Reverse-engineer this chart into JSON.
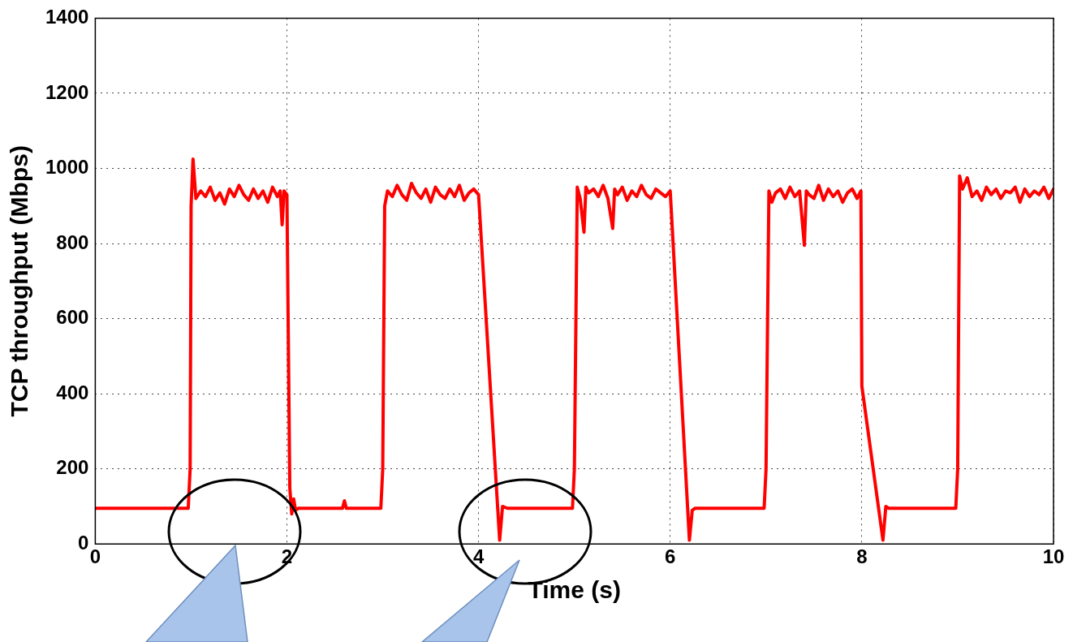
{
  "chart_data": {
    "type": "line",
    "xlabel": "Time (s)",
    "ylabel": "TCP throughput (Mbps)",
    "xlim": [
      0,
      10
    ],
    "xticks": [
      0,
      2,
      4,
      6,
      8,
      10
    ],
    "ylim": [
      0,
      1400
    ],
    "yticks": [
      0,
      200,
      400,
      600,
      800,
      1000,
      1200,
      1400
    ],
    "grid": true,
    "marker": "none",
    "line_style": "solid",
    "series": [
      {
        "color": "#ff0000",
        "x": [
          0,
          0.5,
          0.97,
          0.99,
          1.0,
          1.02,
          1.05,
          1.1,
          1.15,
          1.2,
          1.25,
          1.3,
          1.35,
          1.4,
          1.45,
          1.5,
          1.55,
          1.6,
          1.65,
          1.7,
          1.75,
          1.8,
          1.85,
          1.9,
          1.93,
          1.95,
          1.97,
          2.0,
          2.03,
          2.05,
          2.07,
          2.09,
          2.12,
          2.2,
          2.58,
          2.6,
          2.62,
          2.8,
          2.98,
          3.0,
          3.02,
          3.05,
          3.1,
          3.15,
          3.2,
          3.25,
          3.3,
          3.35,
          3.4,
          3.45,
          3.5,
          3.55,
          3.6,
          3.65,
          3.7,
          3.75,
          3.8,
          3.85,
          3.9,
          3.95,
          4.0,
          4.22,
          4.25,
          4.3,
          4.6,
          4.98,
          5.0,
          5.03,
          5.06,
          5.1,
          5.12,
          5.15,
          5.2,
          5.25,
          5.3,
          5.35,
          5.4,
          5.42,
          5.45,
          5.5,
          5.55,
          5.6,
          5.65,
          5.7,
          5.75,
          5.8,
          5.85,
          5.9,
          5.95,
          6.0,
          6.2,
          6.23,
          6.26,
          6.5,
          6.98,
          7.0,
          7.03,
          7.06,
          7.1,
          7.15,
          7.2,
          7.25,
          7.3,
          7.35,
          7.4,
          7.42,
          7.45,
          7.5,
          7.55,
          7.6,
          7.65,
          7.7,
          7.75,
          7.8,
          7.85,
          7.9,
          7.95,
          7.99,
          8.0,
          8.22,
          8.25,
          8.28,
          8.5,
          8.98,
          9.0,
          9.02,
          9.05,
          9.1,
          9.15,
          9.2,
          9.25,
          9.3,
          9.35,
          9.4,
          9.45,
          9.5,
          9.55,
          9.6,
          9.65,
          9.7,
          9.75,
          9.8,
          9.85,
          9.9,
          9.95,
          10
        ],
        "values": [
          95,
          95,
          95,
          200,
          900,
          1025,
          920,
          940,
          925,
          950,
          915,
          935,
          905,
          945,
          925,
          955,
          930,
          915,
          945,
          920,
          940,
          910,
          950,
          925,
          940,
          850,
          940,
          930,
          150,
          80,
          120,
          90,
          95,
          95,
          95,
          115,
          95,
          95,
          95,
          200,
          900,
          940,
          925,
          955,
          930,
          915,
          960,
          935,
          920,
          945,
          910,
          950,
          930,
          920,
          945,
          925,
          955,
          915,
          935,
          945,
          930,
          10,
          100,
          95,
          95,
          95,
          200,
          950,
          920,
          830,
          950,
          935,
          945,
          925,
          955,
          920,
          840,
          945,
          930,
          950,
          915,
          940,
          925,
          955,
          930,
          920,
          945,
          935,
          925,
          940,
          10,
          90,
          95,
          95,
          95,
          200,
          940,
          910,
          935,
          945,
          920,
          950,
          925,
          940,
          795,
          940,
          930,
          920,
          955,
          915,
          945,
          925,
          940,
          910,
          935,
          945,
          920,
          940,
          420,
          10,
          100,
          95,
          95,
          95,
          200,
          980,
          945,
          975,
          925,
          940,
          915,
          950,
          930,
          945,
          920,
          940,
          935,
          950,
          910,
          945,
          925,
          940,
          930,
          950,
          920,
          945
        ]
      }
    ]
  }
}
